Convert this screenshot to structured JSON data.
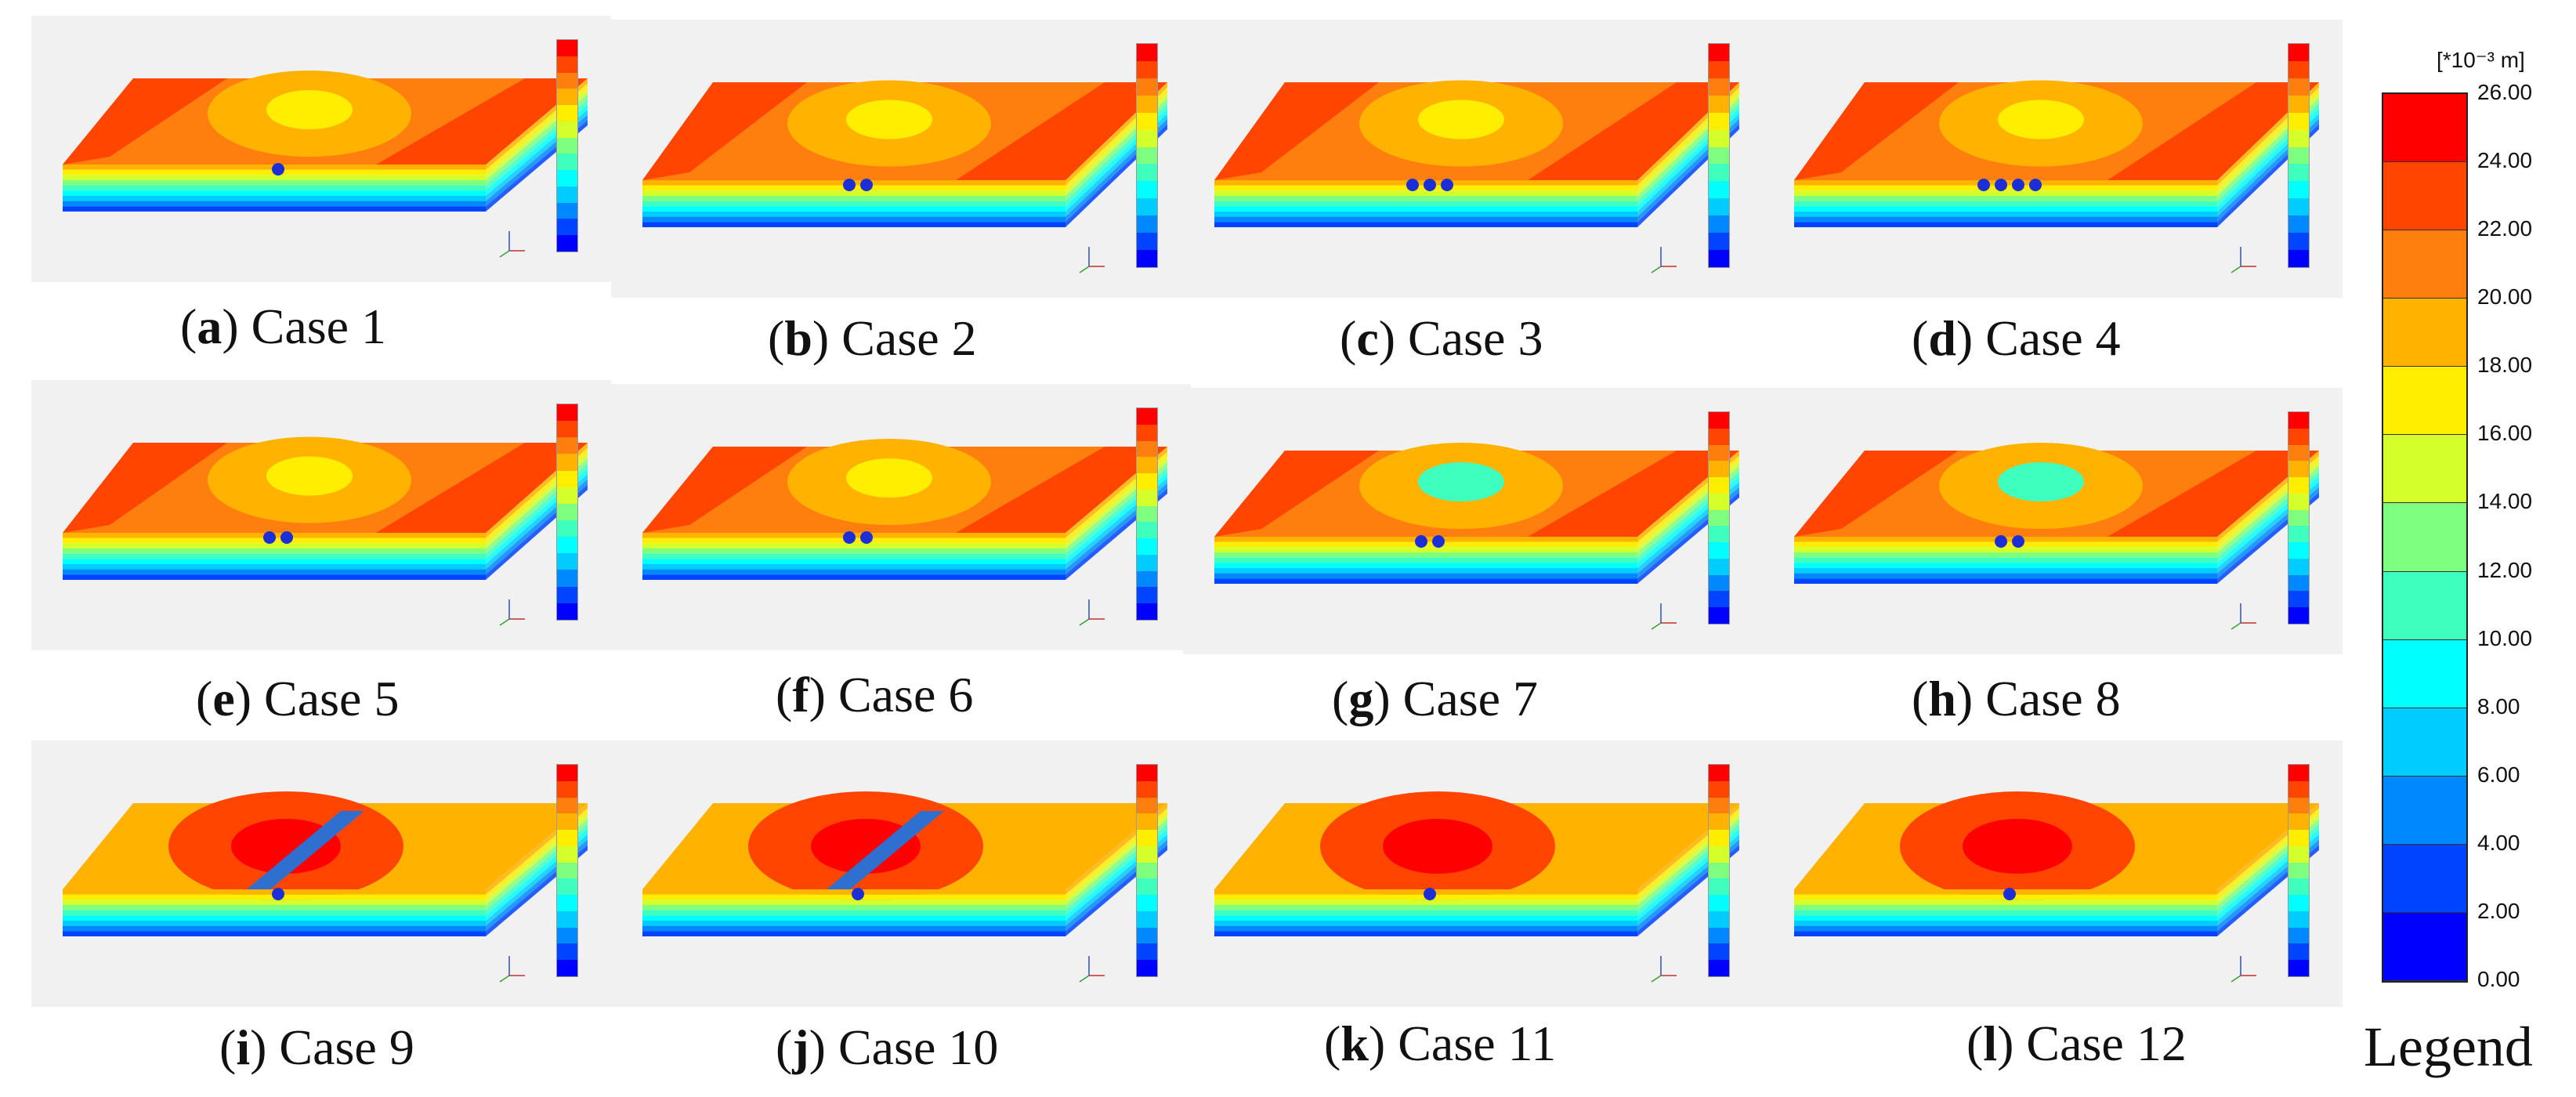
{
  "figure": {
    "panels": [
      {
        "letter": "a",
        "case": "Case 1",
        "tunnels": 1,
        "style": "ground"
      },
      {
        "letter": "b",
        "case": "Case 2",
        "tunnels": 2,
        "style": "ground"
      },
      {
        "letter": "c",
        "case": "Case 3",
        "tunnels": 3,
        "style": "ground"
      },
      {
        "letter": "d",
        "case": "Case 4",
        "tunnels": 4,
        "style": "ground"
      },
      {
        "letter": "e",
        "case": "Case 5",
        "tunnels": 2,
        "style": "ground"
      },
      {
        "letter": "f",
        "case": "Case 6",
        "tunnels": 2,
        "style": "ground"
      },
      {
        "letter": "g",
        "case": "Case 7",
        "tunnels": 2,
        "style": "ground"
      },
      {
        "letter": "h",
        "case": "Case 8",
        "tunnels": 2,
        "style": "ground"
      },
      {
        "letter": "i",
        "case": "Case 9",
        "tunnels": 1,
        "style": "trench"
      },
      {
        "letter": "j",
        "case": "Case 10",
        "tunnels": 1,
        "style": "trench"
      },
      {
        "letter": "k",
        "case": "Case 11",
        "tunnels": 1,
        "style": "deep"
      },
      {
        "letter": "l",
        "case": "Case 12",
        "tunnels": 1,
        "style": "deep"
      }
    ],
    "legend": {
      "unit": "[*10⁻³ m]",
      "title": "Legend",
      "ticks": [
        "26.00",
        "24.00",
        "22.00",
        "20.00",
        "18.00",
        "16.00",
        "14.00",
        "12.00",
        "10.00",
        "8.00",
        "6.00",
        "4.00",
        "2.00",
        "0.00"
      ],
      "colors": [
        "#ff0000",
        "#ff4500",
        "#ff7f0e",
        "#ffb300",
        "#ffee00",
        "#d4ff2a",
        "#7fff7f",
        "#3fffbf",
        "#00ffff",
        "#00ccff",
        "#0088ff",
        "#0044ff",
        "#0000ff"
      ]
    }
  }
}
